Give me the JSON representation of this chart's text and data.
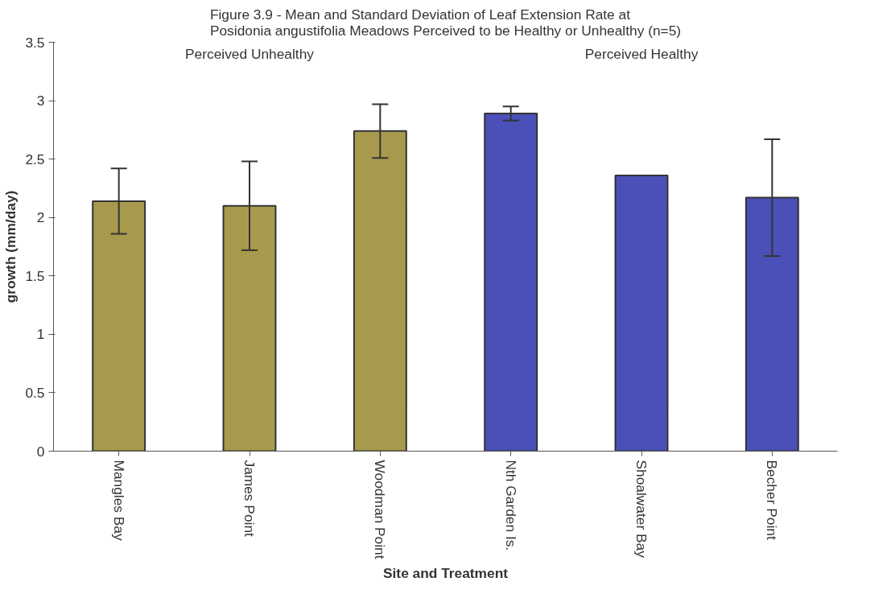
{
  "chart_data": {
    "type": "bar",
    "title": "Figure 3.9 - Mean and Standard Deviation of Leaf Extension Rate at Posidonia angustifolia Meadows Perceived to be Healthy or Unhealthy (n=5)",
    "xlabel": "Site and Treatment",
    "ylabel": "growth (mm/day)",
    "categories": [
      "Mangles Bay",
      "James Point",
      "Woodman Point",
      "Nth Garden Is.",
      "Shoalwater Bay",
      "Becher Point"
    ],
    "values": [
      2.14,
      2.1,
      2.74,
      2.89,
      2.36,
      2.17
    ],
    "errors": [
      0.28,
      0.38,
      0.23,
      0.06,
      null,
      0.5
    ],
    "colors": [
      "#a89a4c",
      "#a89a4c",
      "#a89a4c",
      "#4b50b8",
      "#4b50b8",
      "#4b50b8"
    ],
    "annotations": [
      "Perceived Unhealthy",
      "Perceived Healthy"
    ],
    "ylim": [
      0,
      3.5
    ],
    "yticks": [
      0,
      0.5,
      1,
      1.5,
      2,
      2.5,
      3,
      3.5
    ],
    "grid": false
  }
}
